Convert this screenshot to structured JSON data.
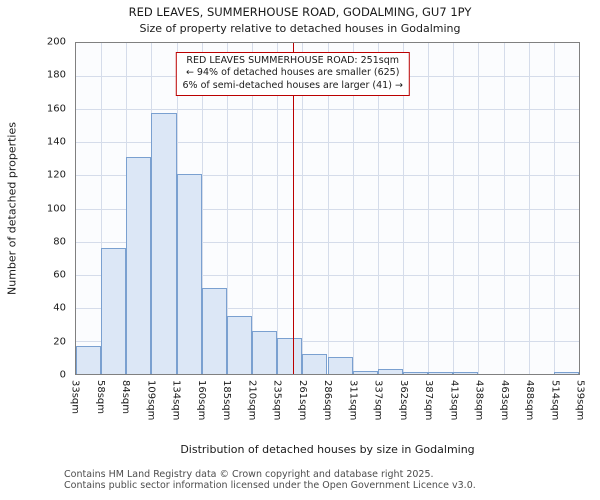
{
  "chart_data": {
    "type": "bar",
    "title": "RED LEAVES, SUMMERHOUSE ROAD, GODALMING, GU7 1PY",
    "subtitle": "Size of property relative to detached houses in Godalming",
    "xlabel": "Distribution of detached houses by size in Godalming",
    "ylabel": "Number of detached properties",
    "bin_edge_labels": [
      "33sqm",
      "58sqm",
      "84sqm",
      "109sqm",
      "134sqm",
      "160sqm",
      "185sqm",
      "210sqm",
      "235sqm",
      "261sqm",
      "286sqm",
      "311sqm",
      "337sqm",
      "362sqm",
      "387sqm",
      "413sqm",
      "438sqm",
      "463sqm",
      "488sqm",
      "514sqm",
      "539sqm"
    ],
    "values": [
      17,
      76,
      131,
      158,
      121,
      52,
      35,
      26,
      22,
      12,
      10,
      2,
      3,
      1,
      1,
      1,
      0,
      0,
      0,
      1
    ],
    "ylim": [
      0,
      200
    ],
    "yticks": [
      0,
      20,
      40,
      60,
      80,
      100,
      120,
      140,
      160,
      180,
      200
    ],
    "grid": true,
    "marker": {
      "value": 251,
      "value_label": "251sqm",
      "axis_min": 33,
      "axis_max": 539,
      "color": "#bb0000"
    },
    "annotation": {
      "lines": [
        "RED LEAVES SUMMERHOUSE ROAD: 251sqm",
        "← 94% of detached houses are smaller (625)",
        "6% of semi-detached houses are larger (41) →"
      ],
      "border_color": "#bb0000"
    },
    "colors": {
      "bar_fill": "#dce7f6",
      "bar_border": "#7aa0d0",
      "grid": "#d5dcea",
      "plot_bg": "#fbfcfe"
    }
  },
  "footer": {
    "line1": "Contains HM Land Registry data © Crown copyright and database right 2025.",
    "line2": "Contains public sector information licensed under the Open Government Licence v3.0."
  }
}
